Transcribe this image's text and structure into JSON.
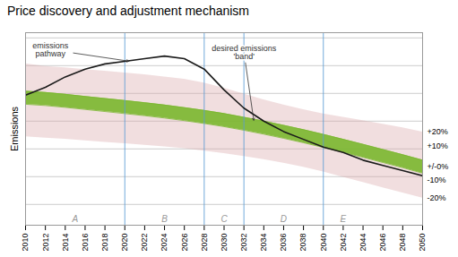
{
  "chart_data": {
    "type": "line",
    "title": "Price discovery and adjustment mechanism",
    "ylabel": "Emissions",
    "x": [
      2010,
      2012,
      2014,
      2016,
      2018,
      2020,
      2022,
      2024,
      2026,
      2028,
      2030,
      2032,
      2034,
      2036,
      2038,
      2040,
      2042,
      2044,
      2046,
      2048,
      2050
    ],
    "values": [
      0.58,
      0.61,
      0.65,
      0.68,
      0.7,
      0.71,
      0.72,
      0.73,
      0.72,
      0.68,
      0.6,
      0.53,
      0.48,
      0.44,
      0.41,
      0.38,
      0.36,
      0.33,
      0.31,
      0.29,
      0.27
    ],
    "color": "#1a1a1a",
    "bands": [
      {
        "color": "#dba8aa",
        "upper": [
          0.7,
          0.69,
          0.685,
          0.678,
          0.672,
          0.665,
          0.658,
          0.65,
          0.641,
          0.626,
          0.607,
          0.584,
          0.562,
          0.542,
          0.524,
          0.508,
          0.495,
          0.482,
          0.468,
          0.454,
          0.438
        ],
        "lower": [
          0.42,
          0.415,
          0.41,
          0.404,
          0.398,
          0.393,
          0.387,
          0.381,
          0.374,
          0.365,
          0.355,
          0.344,
          0.332,
          0.318,
          0.303,
          0.285,
          0.264,
          0.244,
          0.224,
          0.204,
          0.184
        ]
      },
      {
        "color": "#7ab72e",
        "upper": [
          0.595,
          0.59,
          0.583,
          0.575,
          0.567,
          0.559,
          0.551,
          0.542,
          0.532,
          0.521,
          0.509,
          0.495,
          0.48,
          0.464,
          0.447,
          0.429,
          0.41,
          0.391,
          0.371,
          0.351,
          0.33
        ],
        "lower": [
          0.545,
          0.54,
          0.533,
          0.525,
          0.517,
          0.509,
          0.501,
          0.492,
          0.482,
          0.471,
          0.459,
          0.445,
          0.43,
          0.414,
          0.397,
          0.379,
          0.36,
          0.341,
          0.321,
          0.301,
          0.28
        ]
      }
    ],
    "vlines": {
      "x": [
        2020,
        2028,
        2032,
        2040
      ],
      "color": "#5b9bd5"
    },
    "period_labels": [
      "A",
      "B",
      "C",
      "D",
      "E"
    ],
    "period_label_x": [
      2015,
      2024,
      2030,
      2036,
      2042
    ],
    "annotations": [
      {
        "text": "emissions\npathway",
        "x": 2012.5,
        "y": 0.755,
        "arrow_x": 2020.5,
        "arrow_y": 0.71
      },
      {
        "text": "desired emissions\n'band'",
        "x": 2032,
        "y": 0.745,
        "arrow_x": 2033,
        "arrow_y": 0.48
      }
    ],
    "band_labels": [
      {
        "text": "+20%",
        "y": 0.438
      },
      {
        "text": "+10%",
        "y": 0.384
      },
      {
        "text": "+/-0%",
        "y": 0.305
      },
      {
        "text": "-10%",
        "y": 0.252
      },
      {
        "text": "-20%",
        "y": 0.184
      }
    ],
    "xlim": [
      2010,
      2050
    ],
    "xticks": [
      2010,
      2012,
      2014,
      2016,
      2018,
      2020,
      2022,
      2024,
      2026,
      2028,
      2030,
      2032,
      2034,
      2036,
      2038,
      2040,
      2042,
      2044,
      2046,
      2048,
      2050
    ],
    "ylim": [
      0.08,
      0.82
    ],
    "yticks": [
      0.16,
      0.2666666666666667,
      0.37333333333333335,
      0.48,
      0.5866666666666667,
      0.6933333333333334,
      0.8
    ],
    "grid": true,
    "tick_labels": "x"
  }
}
